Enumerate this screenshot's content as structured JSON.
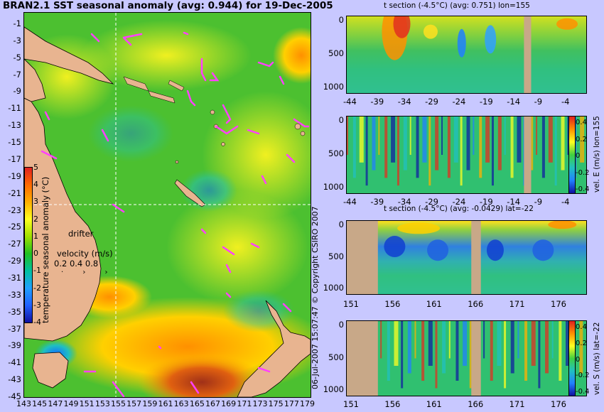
{
  "map": {
    "title": "BRAN2.1 SST seasonal anomaly (avg: 0.944) for 19-Dec-2005",
    "lat_labels": [
      "-1",
      "-3",
      "-5",
      "-7",
      "-9",
      "-11",
      "-13",
      "-15",
      "-17",
      "-19",
      "-21",
      "-23",
      "-25",
      "-27",
      "-29",
      "-31",
      "-33",
      "-35",
      "-37",
      "-39",
      "-41",
      "-43",
      "-45"
    ],
    "lon_labels": [
      "143",
      "145",
      "147",
      "149",
      "151",
      "153",
      "155",
      "157",
      "159",
      "161",
      "163",
      "165",
      "167",
      "169",
      "171",
      "173",
      "175",
      "177",
      "179"
    ],
    "colorbar": {
      "label": "temperature seasonal anomaly (°C)",
      "ticks": [
        "5",
        "4",
        "3",
        "2",
        "1",
        "0",
        "-1",
        "-2",
        "-3",
        "-4"
      ],
      "colors": [
        "#e02020",
        "#ff6a00",
        "#ffb000",
        "#ffff20",
        "#a0e000",
        "#20c020",
        "#00c0a0",
        "#20a0ff",
        "#2060ff",
        "#1010a0"
      ]
    },
    "drifter_label": "drifter",
    "velocity_label": "velocity (m/s)",
    "velocity_scale": [
      "0.2",
      "0.4",
      "0.8"
    ],
    "selected_point": {
      "lon": 155,
      "lat": -22
    },
    "land_color": "#e8b490",
    "ocean_color": "#50c030",
    "drifter_color": "#ff40ff"
  },
  "copyright": "06-Jul-2007 15:07:47   © Copyright CSIRO 2007",
  "panels": [
    {
      "title": "t section (-4.5°C) (avg: 0.751) lon=155",
      "xticks": [
        "-44",
        "-39",
        "-34",
        "-29",
        "-24",
        "-19",
        "-14",
        "-9",
        "-4"
      ],
      "yticks": [
        "0",
        "500",
        "1000"
      ],
      "colorbar_label": ""
    },
    {
      "title": "",
      "xticks": [
        "-44",
        "-39",
        "-34",
        "-29",
        "-24",
        "-19",
        "-14",
        "-9",
        "-4"
      ],
      "yticks": [
        "0",
        "500",
        "1000"
      ],
      "colorbar_label": "vel. E (m/s) lon=155",
      "colorbar_ticks": [
        "0.4",
        "0.2",
        "0",
        "-0.2",
        "-0.4"
      ]
    },
    {
      "title": "t section (-4.5°C) (avg: -0.0429) lat=-22",
      "xticks": [
        "151",
        "156",
        "161",
        "166",
        "171",
        "176"
      ],
      "yticks": [
        "0",
        "500",
        "1000"
      ],
      "colorbar_label": ""
    },
    {
      "title": "",
      "xticks": [
        "151",
        "156",
        "161",
        "166",
        "171",
        "176"
      ],
      "yticks": [
        "0",
        "500",
        "1000"
      ],
      "colorbar_label": "vel. S (m/s) lat=-22",
      "colorbar_ticks": [
        "0.4",
        "0.2",
        "0",
        "-0.2",
        "-0.4"
      ]
    }
  ]
}
